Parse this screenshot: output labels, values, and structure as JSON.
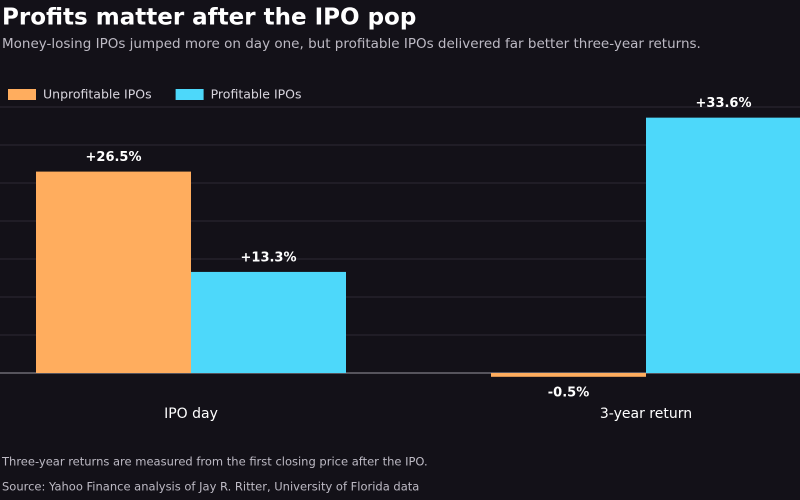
{
  "chart_data": {
    "type": "bar",
    "title": "Profits matter after the IPO pop",
    "subtitle": "Money-losing IPOs jumped more on day one, but profitable IPOs delivered far better three-year returns.",
    "categories": [
      "IPO day",
      "3-year return"
    ],
    "series": [
      {
        "name": "Unprofitable IPOs",
        "color": "#ffad5e",
        "values": [
          26.5,
          -0.5
        ],
        "value_labels": [
          "+26.5%",
          "-0.5%"
        ]
      },
      {
        "name": "Profitable IPOs",
        "color": "#4dd8fa",
        "values": [
          13.3,
          33.6
        ],
        "value_labels": [
          "+13.3%",
          "+33.6%"
        ]
      }
    ],
    "ylim": [
      -1,
      35
    ],
    "yticks": [
      0,
      5,
      10,
      15,
      20,
      25,
      30,
      35
    ],
    "grid": true,
    "legend": "top-left",
    "notes": [
      "Three-year returns are measured from the first closing price after the IPO.",
      "Source: Yahoo Finance analysis of Jay R. Ritter, University of Florida data"
    ]
  }
}
